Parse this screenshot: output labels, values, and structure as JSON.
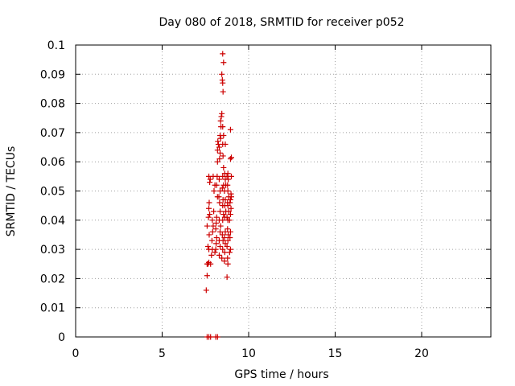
{
  "chart_data": {
    "type": "scatter",
    "title": "Day 080 of 2018, SRMTID for receiver p052",
    "xlabel": "GPS time / hours",
    "ylabel": "SRMTID / TECUs",
    "xlim": [
      0,
      24
    ],
    "ylim": [
      0,
      0.1
    ],
    "xticks": [
      0,
      5,
      10,
      15,
      20
    ],
    "xtick_labels": [
      "0",
      "5",
      "10",
      "15",
      "20"
    ],
    "yticks": [
      0,
      0.01,
      0.02,
      0.03,
      0.04,
      0.05,
      0.06,
      0.07,
      0.08,
      0.09,
      0.1
    ],
    "ytick_labels": [
      "0",
      "0.01",
      "0.02",
      "0.03",
      "0.04",
      "0.05",
      "0.06",
      "0.07",
      "0.08",
      "0.09",
      "0.1"
    ],
    "grid": true,
    "legend": false,
    "marker_color": "#cc0000",
    "marker_symbol": "plus",
    "series": [
      {
        "points": [
          [
            7.55,
            0.016
          ],
          [
            7.6,
            0.021
          ],
          [
            7.6,
            0.025
          ],
          [
            7.65,
            0.025
          ],
          [
            7.7,
            0.0255
          ],
          [
            7.7,
            0.03
          ],
          [
            7.65,
            0.031
          ],
          [
            7.72,
            0.035
          ],
          [
            7.6,
            0.038
          ],
          [
            7.68,
            0.041
          ],
          [
            7.75,
            0.042
          ],
          [
            7.7,
            0.044
          ],
          [
            7.72,
            0.046
          ],
          [
            7.75,
            0.053
          ],
          [
            7.78,
            0.054
          ],
          [
            7.7,
            0.055
          ],
          [
            7.8,
            0.025
          ],
          [
            7.85,
            0.028
          ],
          [
            7.9,
            0.03
          ],
          [
            7.88,
            0.033
          ],
          [
            7.92,
            0.036
          ],
          [
            7.95,
            0.038
          ],
          [
            7.9,
            0.04
          ],
          [
            7.98,
            0.043
          ],
          [
            8.0,
            0.05
          ],
          [
            8.05,
            0.052
          ],
          [
            7.95,
            0.055
          ],
          [
            8.05,
            0.029
          ],
          [
            8.1,
            0.03
          ],
          [
            8.12,
            0.032
          ],
          [
            8.15,
            0.034
          ],
          [
            8.1,
            0.037
          ],
          [
            8.12,
            0.039
          ],
          [
            8.15,
            0.041
          ],
          [
            8.2,
            0.048
          ],
          [
            8.15,
            0.052
          ],
          [
            8.18,
            0.055
          ],
          [
            8.2,
            0.06
          ],
          [
            8.2,
            0.064
          ],
          [
            8.25,
            0.066
          ],
          [
            8.22,
            0.067
          ],
          [
            8.3,
            0.028
          ],
          [
            8.35,
            0.031
          ],
          [
            8.3,
            0.033
          ],
          [
            8.35,
            0.036
          ],
          [
            8.38,
            0.038
          ],
          [
            8.3,
            0.04
          ],
          [
            8.35,
            0.043
          ],
          [
            8.32,
            0.046
          ],
          [
            8.28,
            0.048
          ],
          [
            8.35,
            0.05
          ],
          [
            8.3,
            0.054
          ],
          [
            8.32,
            0.061
          ],
          [
            8.35,
            0.063
          ],
          [
            8.3,
            0.065
          ],
          [
            8.38,
            0.068
          ],
          [
            8.35,
            0.069
          ],
          [
            8.4,
            0.072
          ],
          [
            8.38,
            0.074
          ],
          [
            8.42,
            0.0755
          ],
          [
            8.45,
            0.0765
          ],
          [
            8.45,
            0.027
          ],
          [
            8.5,
            0.03
          ],
          [
            8.52,
            0.033
          ],
          [
            8.48,
            0.035
          ],
          [
            8.5,
            0.04
          ],
          [
            8.55,
            0.042
          ],
          [
            8.5,
            0.045
          ],
          [
            8.52,
            0.047
          ],
          [
            8.48,
            0.051
          ],
          [
            8.55,
            0.052
          ],
          [
            8.5,
            0.055
          ],
          [
            8.55,
            0.058
          ],
          [
            8.52,
            0.062
          ],
          [
            8.5,
            0.066
          ],
          [
            8.55,
            0.069
          ],
          [
            8.5,
            0.072
          ],
          [
            8.52,
            0.084
          ],
          [
            8.5,
            0.087
          ],
          [
            8.48,
            0.088
          ],
          [
            8.45,
            0.09
          ],
          [
            8.55,
            0.094
          ],
          [
            8.5,
            0.097
          ],
          [
            8.6,
            0.026
          ],
          [
            8.62,
            0.029
          ],
          [
            8.65,
            0.032
          ],
          [
            8.6,
            0.034
          ],
          [
            8.65,
            0.036
          ],
          [
            8.62,
            0.041
          ],
          [
            8.68,
            0.043
          ],
          [
            8.62,
            0.045
          ],
          [
            8.65,
            0.047
          ],
          [
            8.6,
            0.05
          ],
          [
            8.68,
            0.052
          ],
          [
            8.65,
            0.054
          ],
          [
            8.62,
            0.056
          ],
          [
            8.65,
            0.066
          ],
          [
            8.75,
            0.0205
          ],
          [
            8.8,
            0.025
          ],
          [
            8.78,
            0.027
          ],
          [
            8.75,
            0.031
          ],
          [
            8.8,
            0.033
          ],
          [
            8.82,
            0.035
          ],
          [
            8.78,
            0.037
          ],
          [
            8.8,
            0.04
          ],
          [
            8.75,
            0.041
          ],
          [
            8.85,
            0.043
          ],
          [
            8.8,
            0.045
          ],
          [
            8.78,
            0.046
          ],
          [
            8.85,
            0.048
          ],
          [
            8.8,
            0.05
          ],
          [
            8.78,
            0.052
          ],
          [
            8.82,
            0.054
          ],
          [
            8.75,
            0.055
          ],
          [
            8.8,
            0.056
          ],
          [
            8.9,
            0.029
          ],
          [
            8.95,
            0.03
          ],
          [
            8.92,
            0.034
          ],
          [
            8.95,
            0.036
          ],
          [
            8.9,
            0.04
          ],
          [
            8.95,
            0.042
          ],
          [
            8.98,
            0.044
          ],
          [
            8.92,
            0.046
          ],
          [
            8.95,
            0.047
          ],
          [
            9.0,
            0.048
          ],
          [
            8.98,
            0.049
          ],
          [
            9.0,
            0.055
          ],
          [
            8.95,
            0.061
          ],
          [
            9.0,
            0.0615
          ],
          [
            8.95,
            0.071
          ]
        ]
      },
      {
        "points": [
          [
            7.6,
            0
          ],
          [
            7.7,
            0
          ],
          [
            7.8,
            0
          ],
          [
            8.1,
            0
          ],
          [
            8.2,
            0
          ]
        ]
      }
    ]
  }
}
